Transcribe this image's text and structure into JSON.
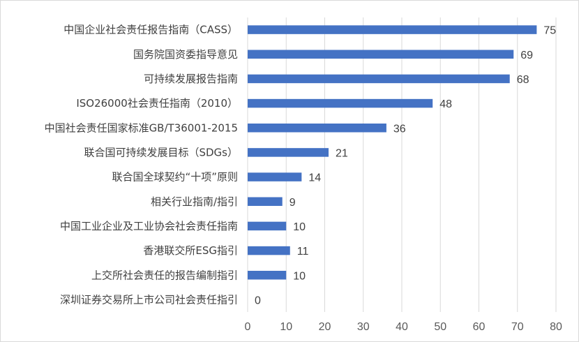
{
  "chart_data": {
    "type": "bar",
    "orientation": "horizontal",
    "categories": [
      "中国企业社会责任报告指南（CASS）",
      "国务院国资委指导意见",
      "可持续发展报告指南",
      "ISO26000社会责任指南（2010）",
      "中国社会责任国家标准GB/T36001-2015",
      "联合国可持续发展目标（SDGs）",
      "联合国全球契约“十项”原则",
      "相关行业指南/指引",
      "中国工业企业及工业协会社会责任指南",
      "香港联交所ESG指引",
      "上交所社会责任的报告编制指引",
      "深圳证券交易所上市公司社会责任指引"
    ],
    "values": [
      75,
      69,
      68,
      48,
      36,
      21,
      14,
      9,
      10,
      11,
      10,
      0
    ],
    "xlim": [
      0,
      80
    ],
    "xticks": [
      0,
      10,
      20,
      30,
      40,
      50,
      60,
      70,
      80
    ],
    "grid": "vertical",
    "legend": "none",
    "bar_color": "#4472c4",
    "title": "",
    "xlabel": "",
    "ylabel": ""
  }
}
